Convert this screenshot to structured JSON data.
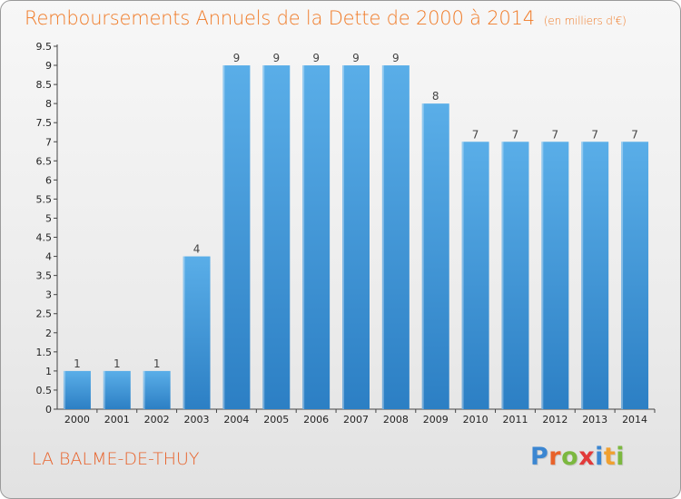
{
  "header": {
    "title": "Remboursements Annuels de la Dette de 2000 à 2014",
    "unit": "(en milliers d'€)"
  },
  "footer": {
    "place": "LA BALME-DE-THUY",
    "logo_letters": [
      "P",
      "r",
      "o",
      "x",
      "i",
      "t",
      "i"
    ]
  },
  "colors": {
    "title": "#f07a26",
    "bar_top": "#5aaee8",
    "bar_bottom": "#2c7fc4",
    "logo": [
      "#3b86d1",
      "#e8622a",
      "#7cb83f",
      "#e23a3a",
      "#3b86d1",
      "#f0a030",
      "#7cb83f"
    ]
  },
  "chart_data": {
    "type": "bar",
    "title": "Remboursements Annuels de la Dette de 2000 à 2014",
    "ylabel": "",
    "xlabel": "",
    "categories": [
      "2000",
      "2001",
      "2002",
      "2003",
      "2004",
      "2005",
      "2006",
      "2007",
      "2008",
      "2009",
      "2010",
      "2011",
      "2012",
      "2013",
      "2014"
    ],
    "values": [
      1,
      1,
      1,
      4,
      9,
      9,
      9,
      9,
      9,
      8,
      7,
      7,
      7,
      7,
      7
    ],
    "data_labels": [
      "1",
      "1",
      "1",
      "4",
      "9",
      "9",
      "9",
      "9",
      "9",
      "8",
      "7",
      "7",
      "7",
      "7",
      "7"
    ],
    "ylim": [
      0,
      9.5
    ],
    "y_ticks": [
      0,
      0.5,
      1,
      1.5,
      2,
      2.5,
      3,
      3.5,
      4,
      4.5,
      5,
      5.5,
      6,
      6.5,
      7,
      7.5,
      8,
      8.5,
      9,
      9.5
    ],
    "y_tick_labels": [
      "0",
      "0.5",
      "1",
      "1.5",
      "2",
      "2.5",
      "3",
      "3.5",
      "4",
      "4.5",
      "5",
      "5.5",
      "6",
      "6.5",
      "7",
      "7.5",
      "8",
      "8.5",
      "9",
      "9.5"
    ],
    "grid": false,
    "legend": "none"
  }
}
